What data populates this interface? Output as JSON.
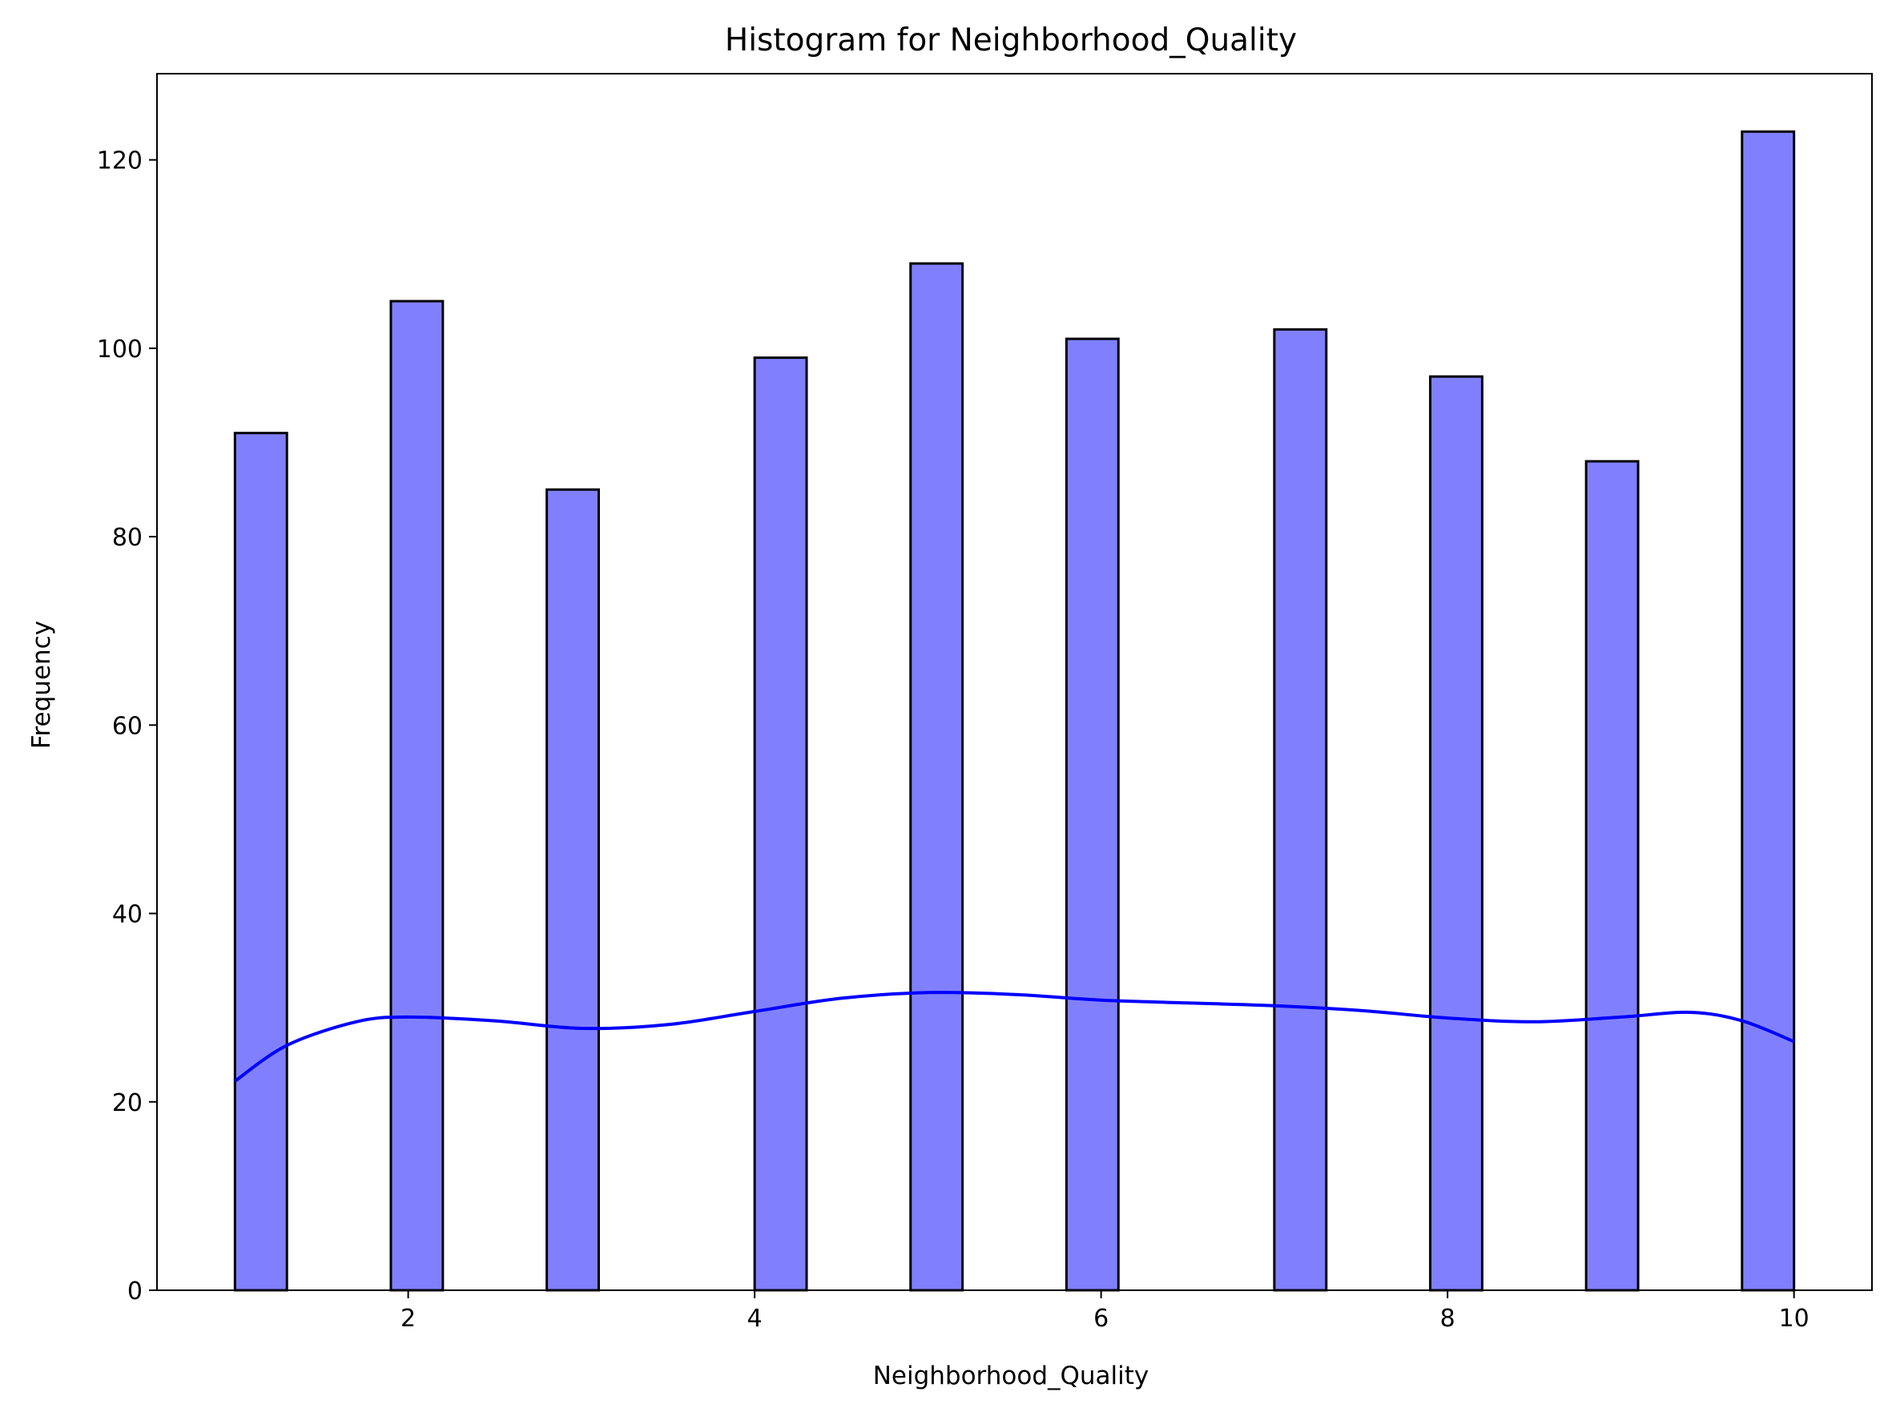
{
  "chart_data": {
    "type": "bar",
    "title": "Histogram for Neighborhood_Quality",
    "xlabel": "Neighborhood_Quality",
    "ylabel": "Frequency",
    "xlim": [
      0.55,
      10.45
    ],
    "ylim": [
      0,
      129.15
    ],
    "xticks": [
      2,
      4,
      6,
      8,
      10
    ],
    "yticks": [
      0,
      20,
      40,
      60,
      80,
      100,
      120
    ],
    "grid": false,
    "bar_color": "#8080ff",
    "edge_color": "#000000",
    "bins": [
      {
        "x_start": 1.0,
        "x_end": 1.3,
        "value": 91
      },
      {
        "x_start": 1.9,
        "x_end": 2.2,
        "value": 105
      },
      {
        "x_start": 2.8,
        "x_end": 3.1,
        "value": 85
      },
      {
        "x_start": 4.0,
        "x_end": 4.3,
        "value": 99
      },
      {
        "x_start": 4.9,
        "x_end": 5.2,
        "value": 109
      },
      {
        "x_start": 5.8,
        "x_end": 6.1,
        "value": 101
      },
      {
        "x_start": 7.0,
        "x_end": 7.3,
        "value": 102
      },
      {
        "x_start": 7.9,
        "x_end": 8.2,
        "value": 97
      },
      {
        "x_start": 8.8,
        "x_end": 9.1,
        "value": 88
      },
      {
        "x_start": 9.7,
        "x_end": 10.0,
        "value": 123
      }
    ],
    "kde": {
      "color": "#0000ff",
      "x": [
        1.0,
        1.3,
        1.7,
        2.0,
        2.5,
        3.0,
        3.5,
        4.0,
        4.5,
        5.0,
        5.5,
        6.0,
        6.5,
        7.0,
        7.5,
        8.0,
        8.5,
        9.0,
        9.4,
        9.7,
        10.0
      ],
      "y": [
        22.2,
        26.0,
        28.5,
        29.0,
        28.6,
        27.8,
        28.2,
        29.6,
        31.0,
        31.6,
        31.4,
        30.8,
        30.5,
        30.2,
        29.7,
        28.9,
        28.5,
        29.0,
        29.5,
        28.6,
        26.4
      ]
    }
  }
}
